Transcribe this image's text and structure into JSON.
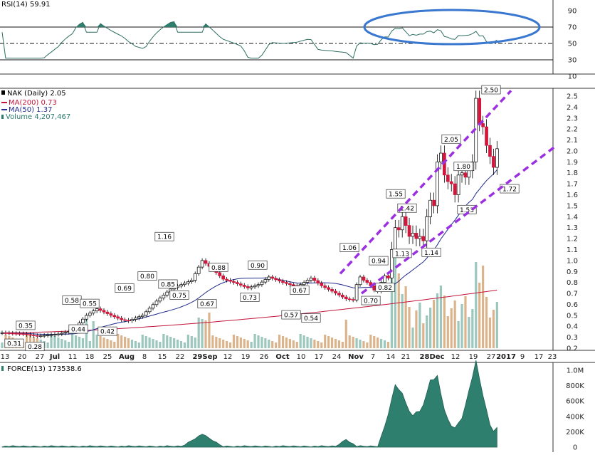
{
  "chart_data": {
    "type": "candlestick",
    "symbol": "NAK",
    "header": "NAK (Daily) 2.05",
    "legend": {
      "ma200": "MA(200) 0.73",
      "ma50": "MA(50) 1.37",
      "volume": "Volume 4,207,467"
    },
    "colors": {
      "up": "#ffffff",
      "down": "#d2163c",
      "ma200": "#c0143c",
      "ma50": "#1f2a8a",
      "vol_up": "#9bc7bd",
      "vol_down": "#dcb48c",
      "channel": "#9b30e0",
      "oval": "#3a78d0",
      "indicator_fill": "#2f7f6f"
    },
    "price_axis": {
      "ticks": [
        "2.5",
        "2.4",
        "2.3",
        "2.2",
        "2.1",
        "2.0",
        "1.9",
        "1.8",
        "1.7",
        "1.6",
        "1.5",
        "1.4",
        "1.3",
        "1.2",
        "1.1",
        "1.0",
        "0.9",
        "0.8",
        "0.7",
        "0.6",
        "0.5",
        "0.4",
        "0.3",
        "0.2"
      ],
      "range": [
        0.15,
        2.6
      ]
    },
    "date_axis": [
      "13",
      "20",
      "27",
      "Jul",
      "11",
      "18",
      "25",
      "Aug",
      "8",
      "15",
      "22",
      "29Sep",
      "12",
      "19",
      "26",
      "Oct",
      "10",
      "17",
      "24",
      "Nov",
      "7",
      "14",
      "21",
      "28Dec",
      "12",
      "19",
      "27",
      "2017",
      "9",
      "17",
      "23"
    ],
    "price_labels": [
      {
        "text": "0.31",
        "value": 0.31,
        "pos": "below"
      },
      {
        "text": "0.35",
        "value": 0.35,
        "pos": "above"
      },
      {
        "text": "0.28",
        "value": 0.28,
        "pos": "below"
      },
      {
        "text": "0.58",
        "value": 0.58,
        "pos": "above"
      },
      {
        "text": "0.44",
        "value": 0.44,
        "pos": "below"
      },
      {
        "text": "0.55",
        "value": 0.55,
        "pos": "above"
      },
      {
        "text": "0.42",
        "value": 0.42,
        "pos": "below"
      },
      {
        "text": "0.69",
        "value": 0.69,
        "pos": "above"
      },
      {
        "text": "0.80",
        "value": 0.8,
        "pos": "above"
      },
      {
        "text": "1.16",
        "value": 1.16,
        "pos": "above"
      },
      {
        "text": "0.85",
        "value": 0.85,
        "pos": "below"
      },
      {
        "text": "0.75",
        "value": 0.75,
        "pos": "below"
      },
      {
        "text": "0.67",
        "value": 0.67,
        "pos": "below"
      },
      {
        "text": "0.88",
        "value": 0.88,
        "pos": "above"
      },
      {
        "text": "0.73",
        "value": 0.73,
        "pos": "below"
      },
      {
        "text": "0.90",
        "value": 0.9,
        "pos": "above"
      },
      {
        "text": "0.67",
        "value": 0.67,
        "pos": "above"
      },
      {
        "text": "0.57",
        "value": 0.57,
        "pos": "below"
      },
      {
        "text": "0.54",
        "value": 0.54,
        "pos": "below"
      },
      {
        "text": "1.06",
        "value": 1.06,
        "pos": "above"
      },
      {
        "text": "0.94",
        "value": 0.94,
        "pos": "above"
      },
      {
        "text": "0.70",
        "value": 0.7,
        "pos": "below"
      },
      {
        "text": "0.82",
        "value": 0.82,
        "pos": "below"
      },
      {
        "text": "1.55",
        "value": 1.55,
        "pos": "above"
      },
      {
        "text": "1.42",
        "value": 1.42,
        "pos": "above"
      },
      {
        "text": "1.13",
        "value": 1.13,
        "pos": "below"
      },
      {
        "text": "1.14",
        "value": 1.14,
        "pos": "below"
      },
      {
        "text": "2.05",
        "value": 2.05,
        "pos": "above"
      },
      {
        "text": "1.80",
        "value": 1.8,
        "pos": "above"
      },
      {
        "text": "1.53",
        "value": 1.53,
        "pos": "below"
      },
      {
        "text": "2.50",
        "value": 2.5,
        "pos": "above"
      },
      {
        "text": "1.72",
        "value": 1.72,
        "pos": "below"
      }
    ],
    "rsi": {
      "label": "RSI(14) 59.91",
      "ticks": [
        "90",
        "70",
        "50",
        "30",
        "10"
      ],
      "levels": [
        70,
        50,
        30
      ]
    },
    "force": {
      "label": "FORCE(13) 173538.6",
      "ticks": [
        "1.0M",
        "800K",
        "600K",
        "400K",
        "200K",
        "0"
      ],
      "range": [
        0,
        1100000
      ]
    }
  }
}
